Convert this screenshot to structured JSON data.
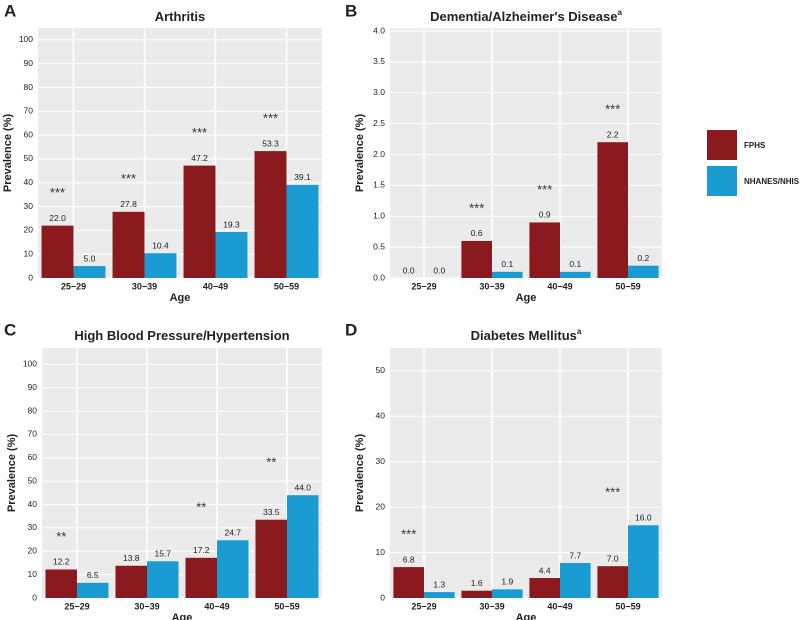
{
  "legend": [
    {
      "name": "FPHS",
      "color": "#8b1a1f"
    },
    {
      "name": "NHANES/NHIS",
      "color": "#1a9bd1"
    }
  ],
  "chart_data": [
    {
      "type": "bar",
      "panel": "A",
      "title": "Arthritis",
      "xlabel": "Age",
      "ylabel": "Prevalence (%)",
      "categories": [
        "25−29",
        "30−39",
        "40−49",
        "50−59"
      ],
      "series": [
        {
          "values": [
            22.0,
            27.8,
            47.2,
            53.3
          ],
          "value_labels": [
            "22.0",
            "27.8",
            "47.2",
            "53.3"
          ]
        },
        {
          "values": [
            5.0,
            10.4,
            19.3,
            39.1
          ],
          "value_labels": [
            "5.0",
            "10.4",
            "19.3",
            "39.1"
          ]
        }
      ],
      "annotations": [
        "***",
        "***",
        "***",
        "***"
      ],
      "ylim": [
        0,
        105
      ],
      "yticks": [
        0,
        10,
        20,
        30,
        40,
        50,
        60,
        70,
        80,
        90,
        100
      ],
      "grid": true
    },
    {
      "type": "bar",
      "panel": "B",
      "title": "Dementia/Alzheimer's Disease",
      "title_note": "a",
      "xlabel": "Age",
      "ylabel": "Prevalence (%)",
      "categories": [
        "25−29",
        "30−39",
        "40−49",
        "50−59"
      ],
      "series": [
        {
          "values": [
            0.0,
            0.6,
            0.9,
            2.2
          ],
          "value_labels": [
            "0.0",
            "0.6",
            "0.9",
            "2.2"
          ]
        },
        {
          "values": [
            0.0,
            0.1,
            0.1,
            0.2
          ],
          "value_labels": [
            "0.0",
            "0.1",
            "0.1",
            "0.2"
          ]
        }
      ],
      "annotations": [
        null,
        "***",
        "***",
        "***"
      ],
      "ylim": [
        0,
        4.05
      ],
      "yticks": [
        {
          "value": 0,
          "label": "0.0"
        },
        {
          "value": 0.5,
          "label": "0.5"
        },
        {
          "value": 1,
          "label": "1.0"
        },
        {
          "value": 1.5,
          "label": "1.5"
        },
        {
          "value": 2,
          "label": "2.0"
        },
        {
          "value": 2.5,
          "label": "2.5"
        },
        {
          "value": 3,
          "label": "3.0"
        },
        {
          "value": 3.5,
          "label": "3.5"
        },
        {
          "value": 4,
          "label": "4.0"
        }
      ],
      "grid": true
    },
    {
      "type": "bar",
      "panel": "C",
      "title": "High Blood Pressure/Hypertension",
      "xlabel": "Age",
      "ylabel": "Prevalence (%)",
      "categories": [
        "25−29",
        "30−39",
        "40−49",
        "50−59"
      ],
      "series": [
        {
          "values": [
            12.2,
            13.8,
            17.2,
            33.5
          ],
          "value_labels": [
            "12.2",
            "13.8",
            "17.2",
            "33.5"
          ]
        },
        {
          "values": [
            6.5,
            15.7,
            24.7,
            44.0
          ],
          "value_labels": [
            "6.5",
            "15.7",
            "24.7",
            "44.0"
          ]
        }
      ],
      "annotations": [
        "**",
        null,
        "**",
        "**"
      ],
      "ylim": [
        0,
        107
      ],
      "yticks": [
        0,
        10,
        20,
        30,
        40,
        50,
        60,
        70,
        80,
        90,
        100
      ],
      "grid": true
    },
    {
      "type": "bar",
      "panel": "D",
      "title": "Diabetes Mellitus",
      "title_note": "a",
      "xlabel": "Age",
      "ylabel": "Prevalence (%)",
      "categories": [
        "25−29",
        "30−39",
        "40−49",
        "50−59"
      ],
      "series": [
        {
          "values": [
            6.8,
            1.6,
            4.4,
            7.0
          ],
          "value_labels": [
            "6.8",
            "1.6",
            "4.4",
            "7.0"
          ]
        },
        {
          "values": [
            1.3,
            1.9,
            7.7,
            16.0
          ],
          "value_labels": [
            "1.3",
            "1.9",
            "7.7",
            "16.0"
          ]
        }
      ],
      "annotations": [
        "***",
        null,
        null,
        "***"
      ],
      "ylim": [
        0,
        55
      ],
      "yticks": [
        0,
        10,
        20,
        30,
        40,
        50
      ],
      "grid": true
    }
  ]
}
